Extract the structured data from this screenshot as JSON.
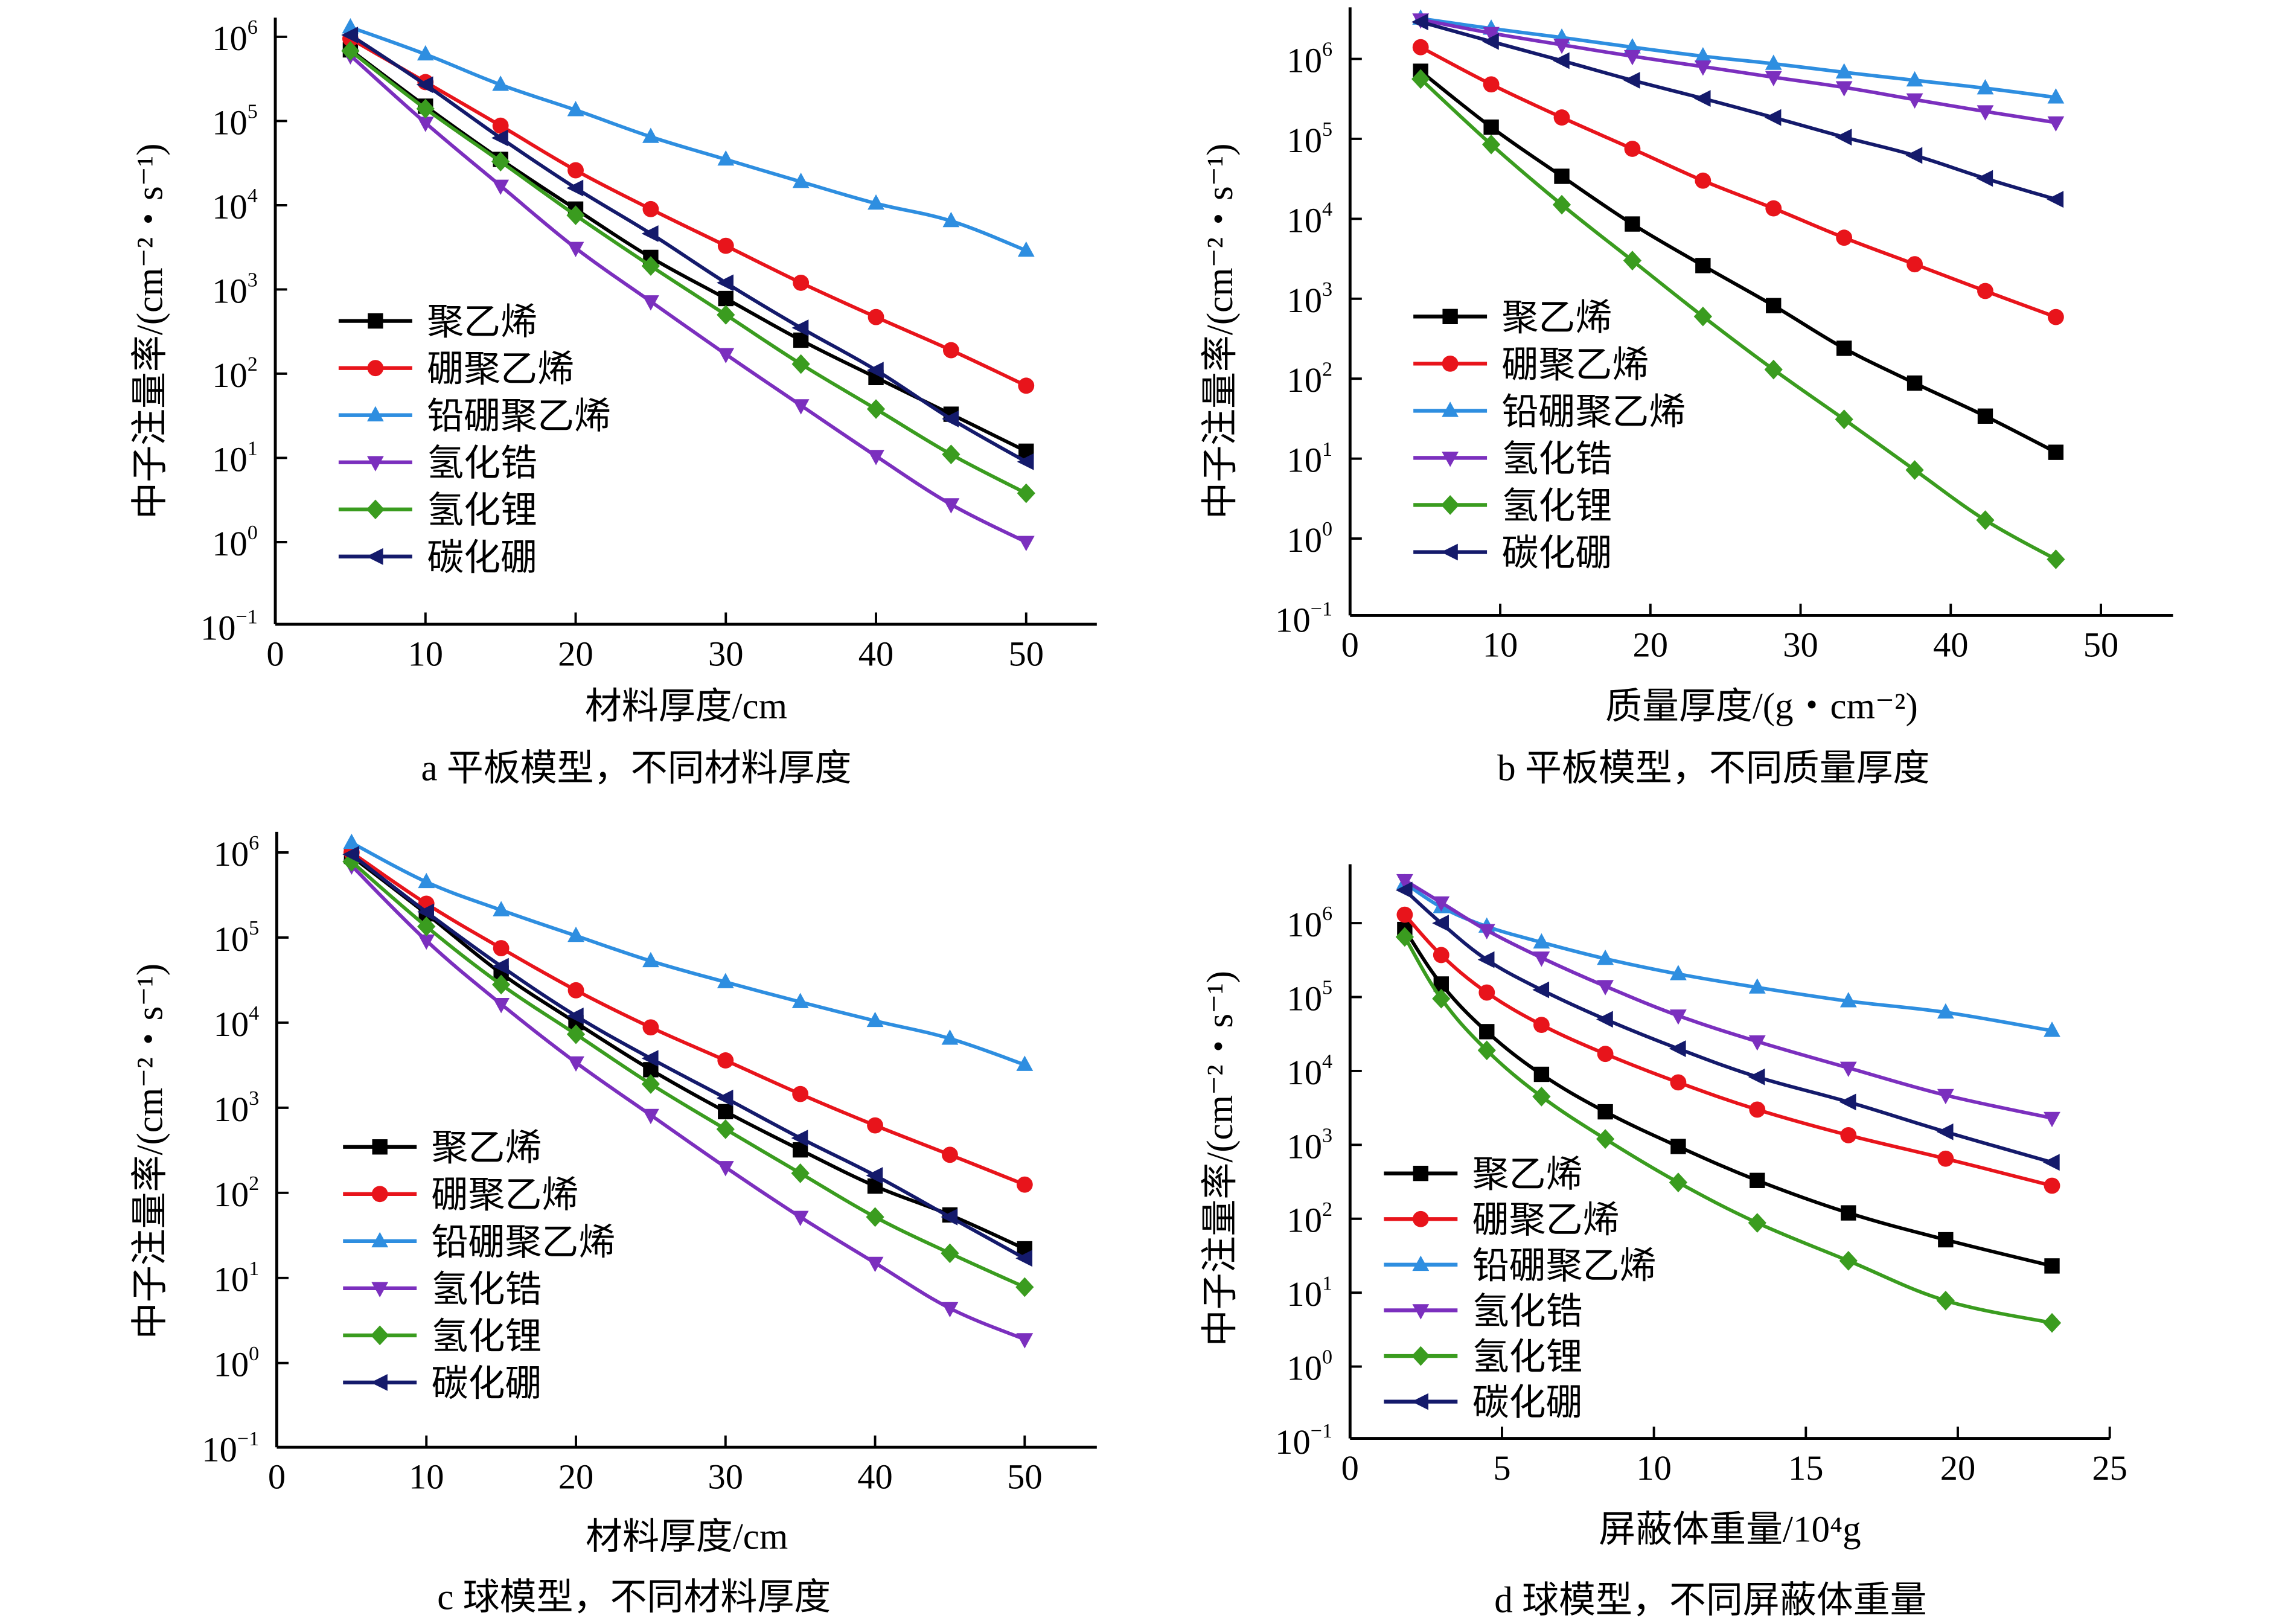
{
  "figure": {
    "y_axis_label": "中子注量率/(cm⁻²・s⁻¹)",
    "legend": [
      "聚乙烯",
      "硼聚乙烯",
      "铅硼聚乙烯",
      "氢化锆",
      "氢化锂",
      "碳化硼"
    ],
    "series_colors": [
      "#000000",
      "#e8141b",
      "#2e8ee0",
      "#7b2fbe",
      "#3a9c1f",
      "#141a6b"
    ],
    "series_markers": [
      "square",
      "circle",
      "triangle-up",
      "triangle-down",
      "diamond",
      "triangle-left"
    ]
  },
  "chart_data": [
    {
      "type": "line",
      "title": "a 平板模型，不同材料厚度",
      "xlabel": "材料厚度/cm",
      "ylabel": "中子注量率/(cm⁻²・s⁻¹)",
      "yscale": "log",
      "xlim": [
        0,
        55
      ],
      "ylim": [
        0.1,
        1500000
      ],
      "xticks": [
        0,
        10,
        20,
        30,
        40,
        50
      ],
      "yticks": [
        "10^-1",
        "10^0",
        "10^1",
        "10^2",
        "10^3",
        "10^4",
        "10^5",
        "10^6"
      ],
      "legend_position": "lower-left",
      "x": [
        5,
        10,
        15,
        20,
        25,
        30,
        35,
        40,
        45,
        50
      ],
      "series": [
        {
          "name": "聚乙烯",
          "values": [
            700000,
            150000,
            35000,
            9000,
            2400,
            780,
            250,
            90,
            33,
            12
          ]
        },
        {
          "name": "硼聚乙烯",
          "values": [
            950000,
            290000,
            88000,
            26000,
            9000,
            3300,
            1200,
            470,
            190,
            72
          ]
        },
        {
          "name": "铅硼聚乙烯",
          "values": [
            1300000,
            620000,
            270000,
            135000,
            65000,
            35000,
            19000,
            10500,
            6500,
            2900
          ]
        },
        {
          "name": "氢化锆",
          "values": [
            600000,
            95000,
            17000,
            3100,
            720,
            170,
            42,
            10.5,
            2.8,
            1.0
          ]
        },
        {
          "name": "氢化锂",
          "values": [
            680000,
            140000,
            33000,
            7600,
            1900,
            500,
            130,
            38,
            11,
            3.8
          ]
        },
        {
          "name": "碳化硼",
          "values": [
            1050000,
            270000,
            63000,
            16000,
            4600,
            1200,
            350,
            110,
            29,
            9
          ]
        }
      ]
    },
    {
      "type": "line",
      "title": "b 平板模型，不同质量厚度",
      "xlabel": "质量厚度/(g・cm⁻²)",
      "ylabel": "中子注量率/(cm⁻²・s⁻¹)",
      "yscale": "log",
      "xlim": [
        0,
        55
      ],
      "ylim": [
        0.1,
        4000000
      ],
      "xticks": [
        0,
        10,
        20,
        30,
        40,
        50
      ],
      "yticks": [
        "10^-1",
        "10^0",
        "10^1",
        "10^2",
        "10^3",
        "10^4",
        "10^5",
        "10^6"
      ],
      "legend_position": "lower-left",
      "x": [
        4.7,
        9.4,
        14.1,
        18.8,
        23.5,
        28.2,
        32.9,
        37.6,
        42.3,
        47.0
      ],
      "series": [
        {
          "name": "聚乙烯",
          "values": [
            700000,
            140000,
            34000,
            8600,
            2600,
            820,
            240,
            88,
            34,
            12
          ]
        },
        {
          "name": "硼聚乙烯",
          "values": [
            1400000,
            480000,
            185000,
            75000,
            30000,
            13500,
            5800,
            2700,
            1250,
            590
          ]
        },
        {
          "name": "铅硼聚乙烯",
          "values": [
            3200000,
            2400000,
            1850000,
            1400000,
            1080000,
            870000,
            680000,
            540000,
            430000,
            330000
          ]
        },
        {
          "name": "氢化锆",
          "values": [
            3100000,
            2100000,
            1500000,
            1080000,
            800000,
            590000,
            440000,
            310000,
            220000,
            160000
          ]
        },
        {
          "name": "氢化锂",
          "values": [
            560000,
            85000,
            15000,
            3000,
            600,
            130,
            31,
            7.2,
            1.7,
            0.55
          ]
        },
        {
          "name": "碳化硼",
          "values": [
            2900000,
            1650000,
            950000,
            540000,
            320000,
            185000,
            105000,
            62000,
            32000,
            17500
          ]
        }
      ]
    },
    {
      "type": "line",
      "title": "c 球模型，不同材料厚度",
      "xlabel": "材料厚度/cm",
      "ylabel": "中子注量率/(cm⁻²・s⁻¹)",
      "yscale": "log",
      "xlim": [
        0,
        55
      ],
      "ylim": [
        0.1,
        1600000
      ],
      "xticks": [
        0,
        10,
        20,
        30,
        40,
        50
      ],
      "yticks": [
        "10^-1",
        "10^0",
        "10^1",
        "10^2",
        "10^3",
        "10^4",
        "10^5",
        "10^6"
      ],
      "legend_position": "lower-left",
      "x": [
        5,
        10,
        15,
        20,
        25,
        30,
        35,
        40,
        45,
        50
      ],
      "series": [
        {
          "name": "聚乙烯",
          "values": [
            900000,
            190000,
            38000,
            10000,
            2800,
            900,
            320,
            120,
            55,
            22
          ]
        },
        {
          "name": "硼聚乙烯",
          "values": [
            1000000,
            250000,
            75000,
            24000,
            8800,
            3600,
            1450,
            620,
            280,
            125
          ]
        },
        {
          "name": "铅硼聚乙烯",
          "values": [
            1300000,
            450000,
            210000,
            105000,
            53000,
            30000,
            17500,
            10500,
            6500,
            3200
          ]
        },
        {
          "name": "氢化锆",
          "values": [
            700000,
            92000,
            16500,
            3400,
            820,
            200,
            52,
            15,
            4.4,
            1.9
          ]
        },
        {
          "name": "氢化锂",
          "values": [
            780000,
            135000,
            28000,
            7300,
            1900,
            560,
            170,
            52,
            19.5,
            7.8
          ]
        },
        {
          "name": "碳化硼",
          "values": [
            950000,
            200000,
            46000,
            12000,
            3800,
            1300,
            440,
            160,
            52,
            17
          ]
        }
      ]
    },
    {
      "type": "line",
      "title": "d 球模型，不同屏蔽体重量",
      "xlabel": "屏蔽体重量/10⁴g",
      "ylabel": "中子注量率/(cm⁻²・s⁻¹)",
      "yscale": "log",
      "xlim": [
        0,
        25
      ],
      "ylim": [
        0.1,
        4500000
      ],
      "xticks": [
        0,
        5,
        10,
        15,
        20,
        25
      ],
      "yticks": [
        "10^-1",
        "10^0",
        "10^1",
        "10^2",
        "10^3",
        "10^4",
        "10^5",
        "10^6"
      ],
      "legend_position": "lower-left",
      "series": [
        {
          "name": "聚乙烯",
          "x": [
            1.8,
            3.0,
            4.5,
            6.3,
            8.4,
            10.8,
            13.4,
            16.4,
            19.6,
            23.1
          ],
          "values": [
            820000,
            150000,
            34000,
            9000,
            2800,
            950,
            330,
            120,
            52,
            23
          ]
        },
        {
          "name": "硼聚乙烯",
          "x": [
            1.8,
            3.0,
            4.5,
            6.3,
            8.4,
            10.8,
            13.4,
            16.4,
            19.6,
            23.1
          ],
          "values": [
            1300000,
            370000,
            115000,
            42000,
            17000,
            7000,
            3000,
            1350,
            650,
            280
          ]
        },
        {
          "name": "铅硼聚乙烯",
          "x": [
            1.8,
            3.0,
            4.5,
            6.3,
            8.4,
            10.8,
            13.4,
            16.4,
            19.6,
            23.1
          ],
          "values": [
            3500000,
            1650000,
            900000,
            550000,
            330000,
            205000,
            135000,
            88000,
            62000,
            35000
          ]
        },
        {
          "name": "氢化锆",
          "x": [
            1.8,
            3.0,
            4.5,
            6.3,
            8.4,
            10.8,
            13.4,
            16.4,
            19.6,
            23.1
          ],
          "values": [
            3800000,
            1900000,
            800000,
            340000,
            140000,
            56000,
            25000,
            11000,
            4700,
            2300
          ]
        },
        {
          "name": "氢化锂",
          "x": [
            1.8,
            3.0,
            4.5,
            6.3,
            8.4,
            10.8,
            13.4,
            16.4,
            19.6,
            23.1
          ],
          "values": [
            650000,
            95000,
            19000,
            4500,
            1200,
            310,
            88,
            27,
            7.8,
            3.9
          ]
        },
        {
          "name": "碳化硼",
          "x": [
            1.8,
            3.0,
            4.5,
            6.3,
            8.4,
            10.8,
            13.4,
            16.4,
            19.6,
            23.1
          ],
          "values": [
            2800000,
            1000000,
            320000,
            125000,
            50000,
            20000,
            8300,
            3800,
            1500,
            580
          ]
        }
      ]
    }
  ]
}
